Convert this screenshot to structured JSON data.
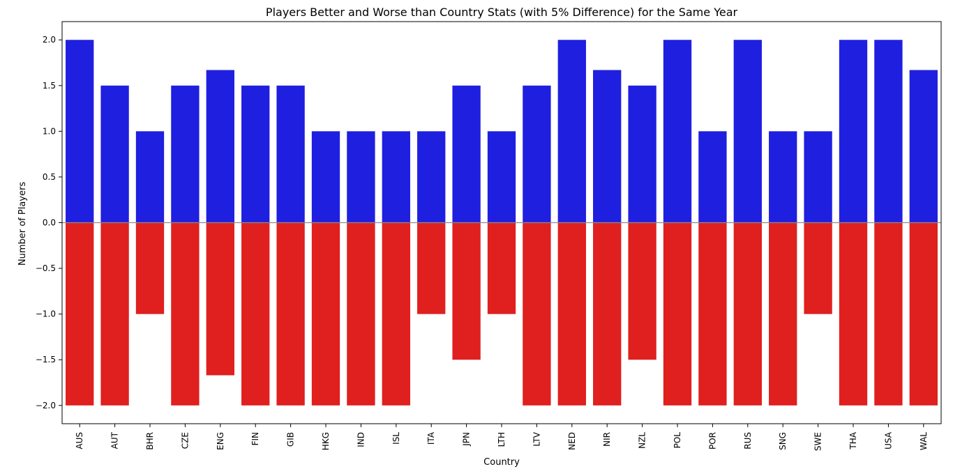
{
  "chart_data": {
    "type": "bar",
    "title": "Players Better and Worse than Country Stats (with 5% Difference) for the Same Year",
    "xlabel": "Country",
    "ylabel": "Number of Players",
    "ylim": [
      -2.2,
      2.2
    ],
    "yticks": [
      2.0,
      1.5,
      1.0,
      0.5,
      0.0,
      -0.5,
      -1.0,
      -1.5,
      -2.0
    ],
    "ytick_labels": [
      "2.0",
      "1.5",
      "1.0",
      "0.5",
      "0.0",
      "−0.5",
      "−1.0",
      "−1.5",
      "−2.0"
    ],
    "grid": false,
    "zero_line": true,
    "categories": [
      "AUS",
      "AUT",
      "BHR",
      "CZE",
      "ENG",
      "FIN",
      "GIB",
      "HKG",
      "IND",
      "ISL",
      "ITA",
      "JPN",
      "LTH",
      "LTV",
      "NED",
      "NIR",
      "NZL",
      "POL",
      "POR",
      "RUS",
      "SNG",
      "SWE",
      "THA",
      "USA",
      "WAL"
    ],
    "series": [
      {
        "color": "#1f1fe0",
        "values": [
          2.0,
          1.5,
          1.0,
          1.5,
          1.67,
          1.5,
          1.5,
          1.0,
          1.0,
          1.0,
          1.0,
          1.5,
          1.0,
          1.5,
          2.0,
          1.67,
          1.5,
          2.0,
          1.0,
          2.0,
          1.0,
          1.0,
          2.0,
          2.0,
          1.67
        ]
      },
      {
        "color": "#e01f1f",
        "values": [
          -2.0,
          -2.0,
          -1.0,
          -2.0,
          -1.67,
          -2.0,
          -2.0,
          -2.0,
          -2.0,
          -2.0,
          -1.0,
          -1.5,
          -1.0,
          -2.0,
          -2.0,
          -2.0,
          -1.5,
          -2.0,
          -2.0,
          -2.0,
          -2.0,
          -1.0,
          -2.0,
          -2.0,
          -2.0
        ]
      }
    ]
  }
}
